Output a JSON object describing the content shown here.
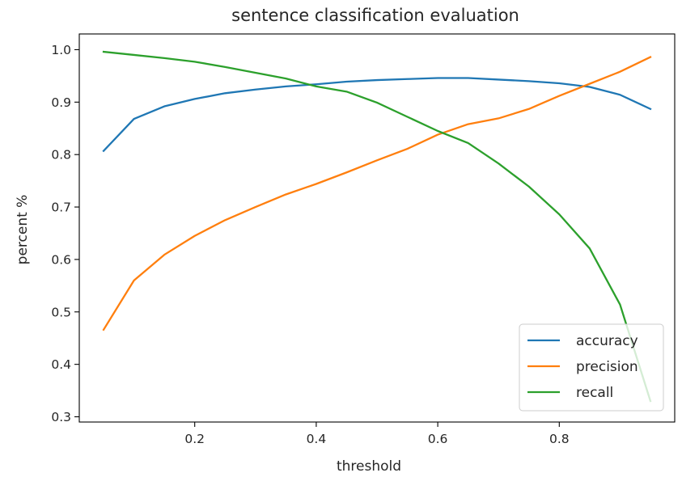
{
  "chart_data": {
    "type": "line",
    "title": "sentence classification evaluation",
    "xlabel": "threshold",
    "ylabel": "percent %",
    "xlim": [
      0.01,
      0.99
    ],
    "ylim": [
      0.29,
      1.03
    ],
    "xticks": [
      0.2,
      0.4,
      0.6,
      0.8
    ],
    "xtick_labels": [
      "0.2",
      "0.4",
      "0.6",
      "0.8"
    ],
    "yticks": [
      0.3,
      0.4,
      0.5,
      0.6,
      0.7,
      0.8,
      0.9,
      1.0
    ],
    "ytick_labels": [
      "0.3",
      "0.4",
      "0.5",
      "0.6",
      "0.7",
      "0.8",
      "0.9",
      "1.0"
    ],
    "grid": false,
    "legend_position": "lower-right",
    "x": [
      0.05,
      0.1,
      0.15,
      0.2,
      0.25,
      0.3,
      0.35,
      0.4,
      0.45,
      0.5,
      0.55,
      0.6,
      0.65,
      0.7,
      0.75,
      0.8,
      0.85,
      0.9,
      0.95
    ],
    "series": [
      {
        "name": "accuracy",
        "color": "#1f77b4",
        "values": [
          0.807,
          0.868,
          0.892,
          0.906,
          0.917,
          0.924,
          0.93,
          0.934,
          0.939,
          0.942,
          0.944,
          0.946,
          0.946,
          0.943,
          0.94,
          0.936,
          0.929,
          0.914,
          0.887
        ]
      },
      {
        "name": "precision",
        "color": "#ff7f0e",
        "values": [
          0.466,
          0.56,
          0.609,
          0.645,
          0.675,
          0.7,
          0.724,
          0.744,
          0.766,
          0.789,
          0.811,
          0.838,
          0.858,
          0.869,
          0.887,
          0.912,
          0.935,
          0.958,
          0.986
        ]
      },
      {
        "name": "recall",
        "color": "#2ca02c",
        "values": [
          0.996,
          0.99,
          0.984,
          0.977,
          0.967,
          0.956,
          0.945,
          0.93,
          0.92,
          0.899,
          0.872,
          0.845,
          0.822,
          0.783,
          0.739,
          0.686,
          0.621,
          0.514,
          0.33
        ]
      }
    ]
  }
}
